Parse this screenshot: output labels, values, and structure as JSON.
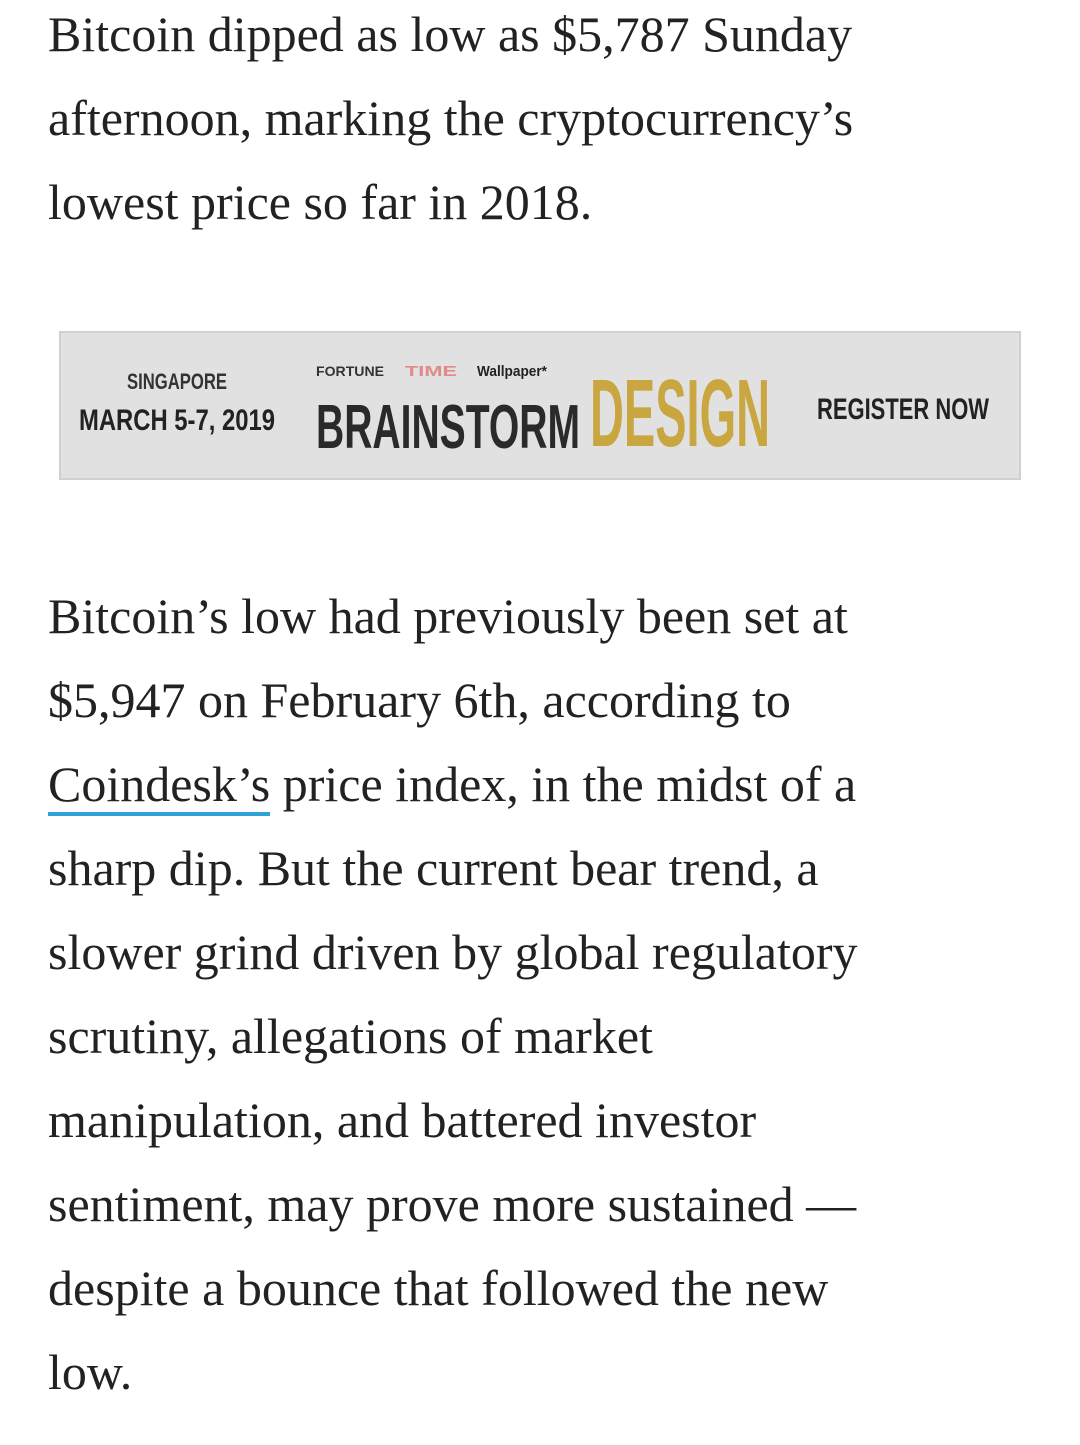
{
  "paragraphs": [
    {
      "lines": [
        "Bitcoin dipped as low as $5,787 Sunday",
        "afternoon, marking the cryptocurrency’s",
        "lowest price so far in 2018."
      ]
    },
    {
      "lines": [
        "Bitcoin’s low had previously been set at",
        "$5,947 on February 6th, according to",
        "price index, in the midst of a",
        "sharp dip. But the current bear trend, a",
        "slower grind driven by global regulatory",
        "scrutiny, allegations of market",
        "manipulation, and battered investor",
        "sentiment, may prove more sustained —",
        "despite a bounce that followed the new",
        "low."
      ],
      "link": "Coindesk’s"
    }
  ],
  "ad": {
    "location": "SINGAPORE",
    "dates": "MARCH 5-7, 2019",
    "brands": [
      "FORTUNE",
      "TIME",
      "Wallpaper*"
    ],
    "event": "BRAINSTORM",
    "event_accent": "DESIGN",
    "cta": "REGISTER NOW"
  }
}
